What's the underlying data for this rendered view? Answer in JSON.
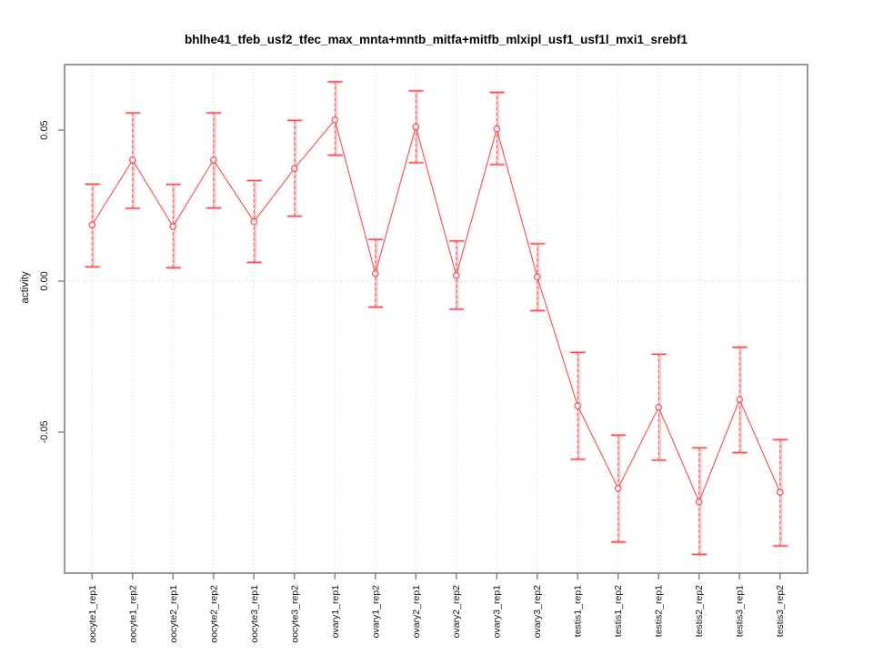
{
  "chart_data": {
    "type": "line",
    "title": "bhlhe41_tfeb_usf2_tfec_max_mnta+mntb_mitfa+mitfb_mlxipl_usf1_usf1l_mxi1_srebf1",
    "xlabel": "",
    "ylabel": "activity",
    "categories": [
      "oocyte1_rep1",
      "oocyte1_rep2",
      "oocyte2_rep1",
      "oocyte2_rep2",
      "oocyte3_rep1",
      "oocyte3_rep2",
      "ovary1_rep1",
      "ovary1_rep2",
      "ovary2_rep1",
      "ovary2_rep2",
      "ovary3_rep1",
      "ovary3_rep2",
      "testis1_rep1",
      "testis1_rep2",
      "testis2_rep1",
      "testis2_rep2",
      "testis3_rep1",
      "testis3_rep2"
    ],
    "series": [
      {
        "name": "activity",
        "values": [
          0.0186,
          0.0401,
          0.0181,
          0.0401,
          0.0197,
          0.0373,
          0.0534,
          0.0025,
          0.0511,
          0.0019,
          0.0504,
          0.0014,
          -0.0413,
          -0.0686,
          -0.0418,
          -0.0731,
          -0.0392,
          -0.0699
        ],
        "error_lower": [
          0.0047,
          0.0241,
          0.0044,
          0.0242,
          0.0062,
          0.0215,
          0.0417,
          -0.0086,
          0.0392,
          -0.0093,
          0.0386,
          -0.0098,
          -0.059,
          -0.0864,
          -0.0593,
          -0.0905,
          -0.0568,
          -0.0877
        ],
        "error_upper": [
          0.0321,
          0.0557,
          0.032,
          0.0557,
          0.0333,
          0.0532,
          0.066,
          0.0138,
          0.063,
          0.0133,
          0.0625,
          0.0124,
          -0.0236,
          -0.051,
          -0.0242,
          -0.0552,
          -0.0219,
          -0.0525
        ]
      }
    ],
    "yticks": {
      "values": [
        -0.05,
        0,
        0.05
      ],
      "labels": [
        "-0.05",
        "0.00",
        "0.05"
      ]
    },
    "ylim": [
      -0.0967,
      0.0717
    ],
    "grid": {
      "vertical_dotted_per_category": true,
      "horizontal_dotted_zero_line": true
    },
    "legend_position": "none",
    "marker": "open-circle",
    "colors": {
      "line": "#fb4b4b",
      "error_bar": "#fb4b4b",
      "error_bar_halo": "#fc9292",
      "gridline": "#d6d6d6",
      "frame": "#999999",
      "text": "#000000"
    }
  }
}
